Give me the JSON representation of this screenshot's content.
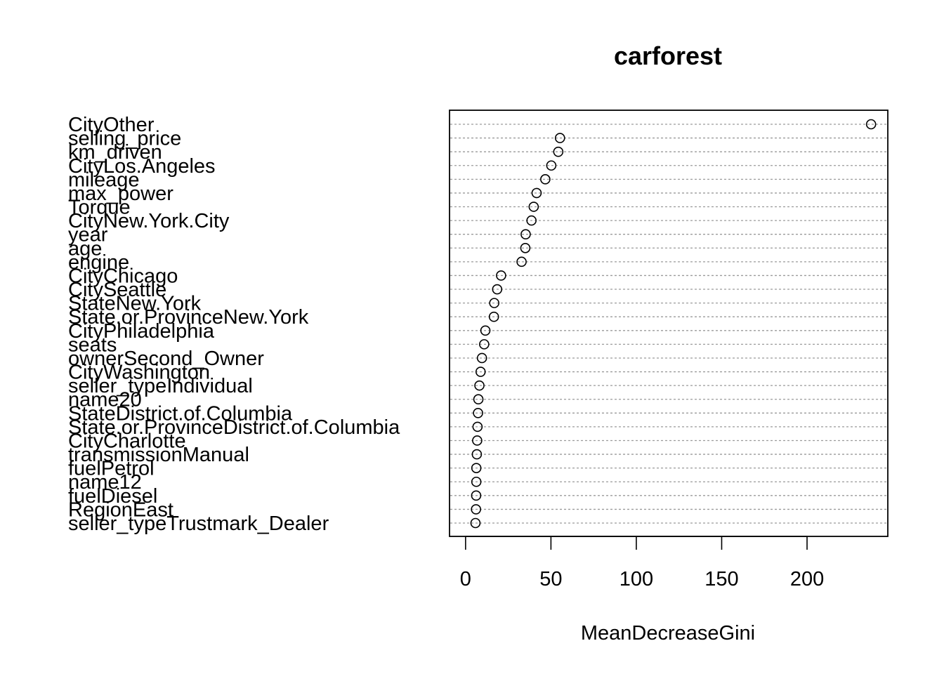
{
  "chart_data": {
    "type": "scatter",
    "title": "carforest",
    "xlabel": "MeanDecreaseGini",
    "ylabel": "",
    "xlim": [
      -9.4,
      247.3
    ],
    "x_ticks": [
      0,
      50,
      100,
      150,
      200
    ],
    "grid": "dotted horizontal lines per variable",
    "legend": "none",
    "marker_color": "#000000",
    "series": [
      {
        "categories": [
          "CityOther",
          "selling_price",
          "km_driven",
          "CityLos.Angeles",
          "mileage",
          "max_power",
          "Torque",
          "CityNew.York.City",
          "year",
          "age",
          "engine",
          "CityChicago",
          "CitySeattle",
          "StateNew.York",
          "State.or.ProvinceNew.York",
          "CityPhiladelphia",
          "seats",
          "ownerSecond_Owner",
          "CityWashington",
          "seller_typeIndividual",
          "name20",
          "StateDistrict.of.Columbia",
          "State.or.ProvinceDistrict.of.Columbia",
          "CityCharlotte",
          "transmissionManual",
          "fuelPetrol",
          "name12",
          "fuelDiesel",
          "RegionEast",
          "seller_typeTrustmark_Dealer"
        ],
        "values": [
          237.5,
          55.3,
          54.3,
          50.2,
          46.7,
          41.6,
          39.9,
          38.6,
          35.2,
          35.0,
          32.8,
          20.8,
          18.5,
          16.8,
          16.6,
          11.6,
          10.9,
          9.6,
          8.8,
          8.1,
          7.5,
          7.3,
          7.0,
          6.8,
          6.6,
          6.3,
          6.3,
          6.2,
          6.1,
          5.8
        ]
      }
    ]
  }
}
